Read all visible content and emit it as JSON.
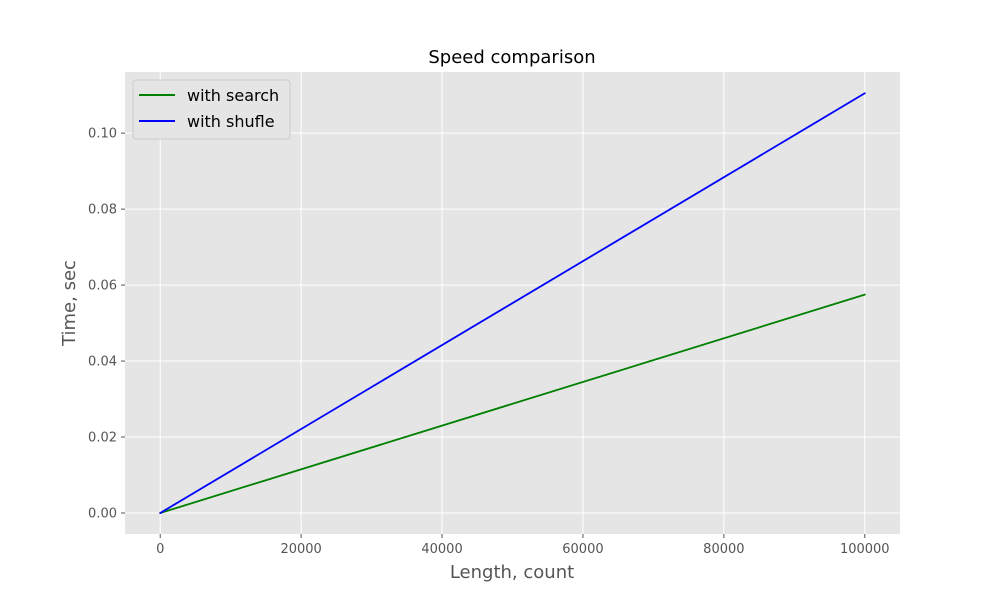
{
  "chart_data": {
    "type": "line",
    "title": "Speed comparison",
    "xlabel": "Length, count",
    "ylabel": "Time, sec",
    "xlim": [
      -5000,
      105000
    ],
    "ylim": [
      -0.00553,
      0.1161
    ],
    "xticks": [
      0,
      20000,
      40000,
      60000,
      80000,
      100000
    ],
    "xtick_labels": [
      "0",
      "20000",
      "40000",
      "60000",
      "80000",
      "100000"
    ],
    "yticks": [
      0.0,
      0.02,
      0.04,
      0.06,
      0.08,
      0.1
    ],
    "ytick_labels": [
      "0.00",
      "0.02",
      "0.04",
      "0.06",
      "0.08",
      "0.10"
    ],
    "grid": true,
    "legend_position": "top-left",
    "background": "#e5e5e5",
    "series": [
      {
        "name": "with search",
        "color": "#008000",
        "x": [
          0,
          100000
        ],
        "y": [
          0.0,
          0.0575
        ]
      },
      {
        "name": "with shufle",
        "color": "#0000ff",
        "x": [
          0,
          100000
        ],
        "y": [
          0.0,
          0.1105
        ]
      }
    ]
  }
}
